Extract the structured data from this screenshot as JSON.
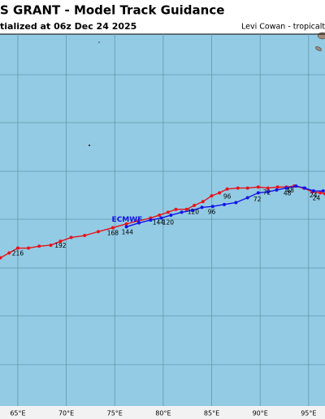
{
  "chart_data": {
    "type": "line",
    "title": "S GRANT - Model Track Guidance",
    "subtitle": "tialized at 06z Dec 24 2025",
    "credit": "Levi Cowan - tropicaltic",
    "xlim": [
      63.16,
      96.69
    ],
    "ylim": [
      -0.81,
      -39.2
    ],
    "xticks": [
      {
        "value": 65,
        "label": "65°E"
      },
      {
        "value": 70,
        "label": "70°E"
      },
      {
        "value": 75,
        "label": "75°E"
      },
      {
        "value": 80,
        "label": "80°E"
      },
      {
        "value": 85,
        "label": "85°E"
      },
      {
        "value": 90,
        "label": "90°E"
      },
      {
        "value": 95,
        "label": "95°E"
      }
    ],
    "grid": true,
    "series": [
      {
        "color": "#e8121b",
        "x": [
          63.2,
          64.1,
          65.0,
          66.1,
          67.2,
          68.4,
          69.4,
          70.5,
          71.9,
          73.3,
          74.8,
          76.2,
          77.4,
          78.7,
          79.6,
          80.5,
          81.3,
          82.4,
          83.2,
          84.1,
          85.0,
          85.8,
          86.6,
          87.7,
          88.7,
          89.8,
          90.8,
          91.8,
          92.7,
          93.5,
          94.5,
          95.4,
          96.2,
          96.7
        ],
        "values": [
          -23.9,
          -23.4,
          -22.9,
          -22.9,
          -22.7,
          -22.6,
          -22.2,
          -21.8,
          -21.6,
          -21.2,
          -20.8,
          -20.4,
          -20.1,
          -19.8,
          -19.5,
          -19.2,
          -18.9,
          -18.9,
          -18.5,
          -18.1,
          -17.5,
          -17.2,
          -16.8,
          -16.7,
          -16.7,
          -16.6,
          -16.7,
          -16.6,
          -16.6,
          -16.5,
          -16.7,
          -17.1,
          -17.2,
          -17.3
        ]
      },
      {
        "name": "ECMWF",
        "color": "#1414e6",
        "x": [
          76.2,
          77.5,
          78.7,
          79.8,
          80.8,
          81.9,
          83.0,
          84.0,
          85.1,
          86.3,
          87.5,
          88.7,
          89.8,
          90.8,
          91.7,
          92.7,
          93.7,
          94.6,
          95.5,
          96.5
        ],
        "values": [
          -20.7,
          -20.3,
          -20.0,
          -19.8,
          -19.5,
          -19.2,
          -19.0,
          -18.7,
          -18.6,
          -18.4,
          -18.2,
          -17.7,
          -17.2,
          -17.1,
          -16.9,
          -16.7,
          -16.5,
          -16.7,
          -17.0,
          -17.0
        ]
      }
    ],
    "annotations": [
      {
        "text": "216",
        "x": 65.0,
        "y": -23.5
      },
      {
        "text": "192",
        "x": 69.4,
        "y": -22.7
      },
      {
        "text": "168",
        "x": 74.8,
        "y": -21.4
      },
      {
        "text": "144",
        "x": 76.3,
        "y": -21.3
      },
      {
        "text": "144",
        "x": 79.5,
        "y": -20.3
      },
      {
        "text": "120",
        "x": 80.5,
        "y": -20.3
      },
      {
        "text": "120",
        "x": 83.1,
        "y": -19.2
      },
      {
        "text": "96",
        "x": 85.0,
        "y": -19.2
      },
      {
        "text": "96",
        "x": 86.6,
        "y": -17.6
      },
      {
        "text": "72",
        "x": 89.7,
        "y": -17.9
      },
      {
        "text": "72",
        "x": 90.7,
        "y": -17.2
      },
      {
        "text": "48",
        "x": 92.8,
        "y": -17.3
      },
      {
        "text": "48",
        "x": 93.1,
        "y": -17.0
      },
      {
        "text": "24",
        "x": 95.5,
        "y": -17.5
      },
      {
        "text": "24",
        "x": 95.8,
        "y": -17.8
      }
    ]
  }
}
